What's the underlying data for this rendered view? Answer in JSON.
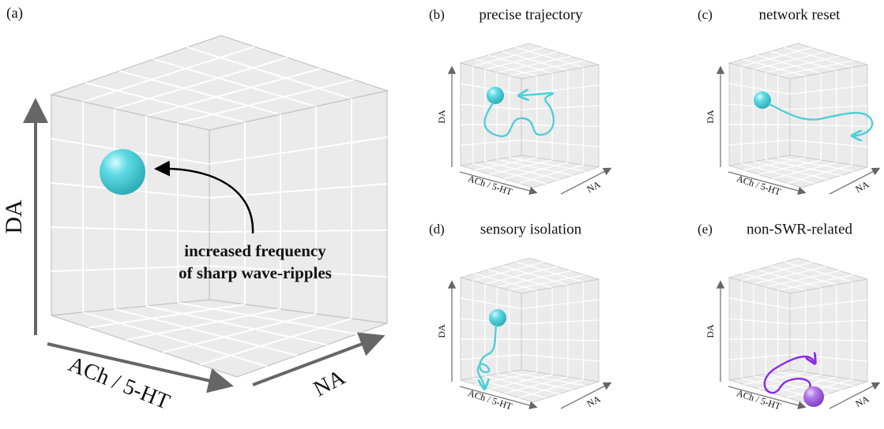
{
  "panels": [
    {
      "label": "(a)",
      "axes": {
        "y": "DA",
        "x": "ACh / 5-HT",
        "z": "NA"
      },
      "annotation": [
        "increased frequency",
        "of sharp wave-ripples"
      ]
    },
    {
      "label": "(b)",
      "title": "precise trajectory",
      "axes": {
        "y": "DA",
        "x": "ACh / 5-HT",
        "z": "NA"
      }
    },
    {
      "label": "(c)",
      "title": "network reset",
      "axes": {
        "y": "DA",
        "x": "ACh / 5-HT",
        "z": "NA"
      }
    },
    {
      "label": "(d)",
      "title": "sensory isolation",
      "axes": {
        "y": "DA",
        "x": "ACh / 5-HT",
        "z": "NA"
      }
    },
    {
      "label": "(e)",
      "title": "non-SWR-related",
      "axes": {
        "y": "DA",
        "x": "ACh / 5-HT",
        "z": "NA"
      }
    }
  ]
}
